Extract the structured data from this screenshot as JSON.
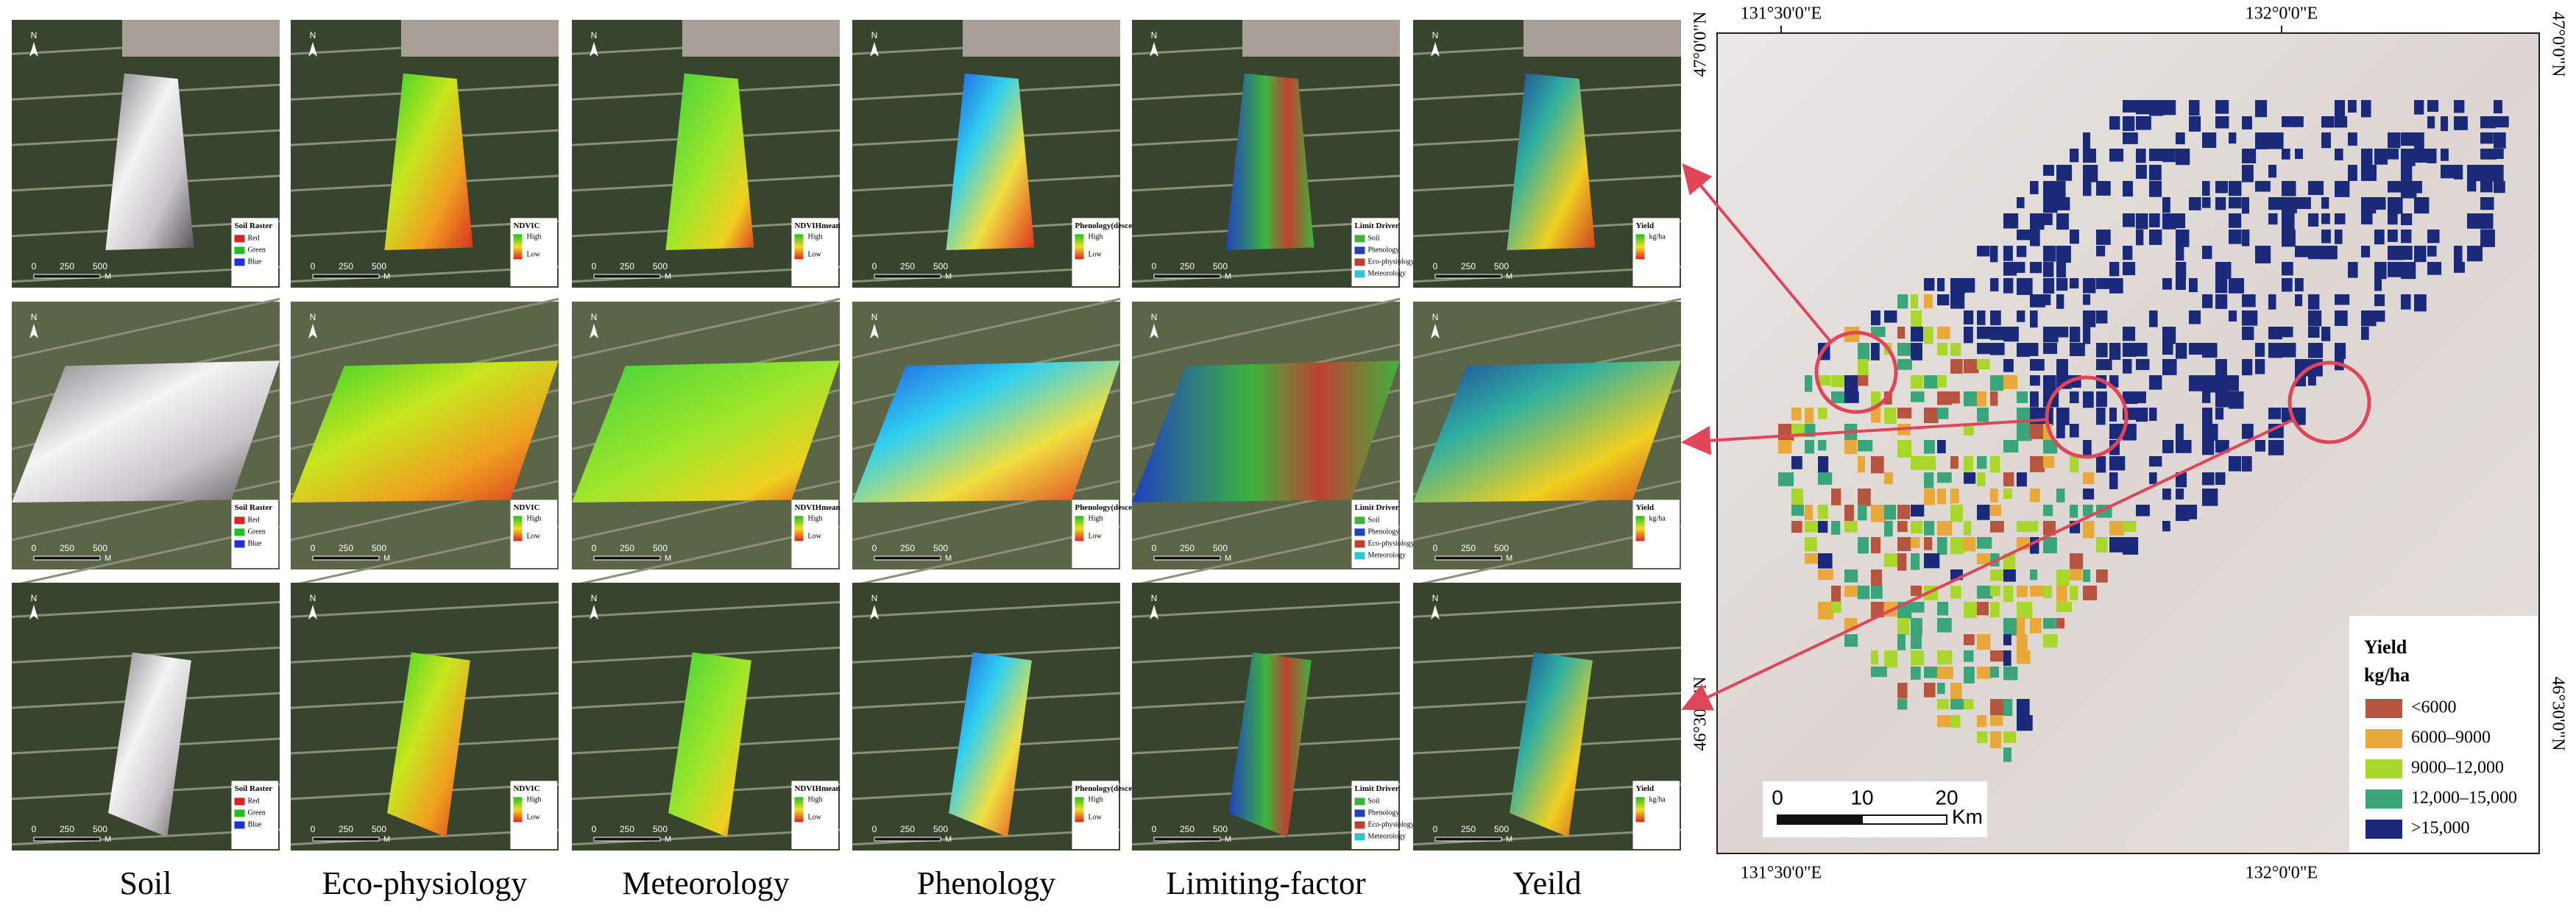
{
  "panels": {
    "columns": [
      {
        "label": "Soil",
        "legend_title": "Soil Raster",
        "legend_items": [
          "Red",
          "Green",
          "Blue"
        ],
        "swatches": [
          "#e02020",
          "#20c020",
          "#2030e0"
        ]
      },
      {
        "label": "Eco-physiology",
        "legend_title": "NDVIC",
        "legend_items": [
          "High",
          "Low"
        ]
      },
      {
        "label": "Meteorology",
        "legend_title": "NDVIHmean",
        "legend_items": [
          "High",
          "Low"
        ]
      },
      {
        "label": "Phenology",
        "legend_title": "Phenology(descend)",
        "legend_items": [
          "High",
          "Low"
        ]
      },
      {
        "label": "Limiting-factor",
        "legend_title": "Limit Driver",
        "legend_items": [
          "Soil",
          "Phenology",
          "Eco-physiology",
          "Meteorology"
        ],
        "swatches": [
          "#3cb43c",
          "#2040c0",
          "#c04030",
          "#30c8d0"
        ]
      },
      {
        "label": "Yeild",
        "legend_title": "Yield",
        "legend_items": [
          "kg/ha"
        ]
      }
    ],
    "north": "N",
    "scale_labels": [
      "0",
      "250",
      "500"
    ],
    "scale_unit": "M"
  },
  "map": {
    "lon_labels": [
      "131°30'0\"E",
      "132°0'0\"E"
    ],
    "lat_labels": [
      "47°0'0\"N",
      "46°30'0\"N"
    ],
    "legend": {
      "title": "Yield",
      "unit": "kg/ha",
      "items": [
        {
          "label": "<6000",
          "color": "#b5553f"
        },
        {
          "label": "6000–9000",
          "color": "#e8a93a"
        },
        {
          "label": "9000–12,000",
          "color": "#a8d62a"
        },
        {
          "label": "12,000–15,000",
          "color": "#3aa57a"
        },
        {
          "label": ">15,000",
          "color": "#1b2a78"
        }
      ]
    },
    "scale_labels": [
      "0",
      "10",
      "20"
    ],
    "scale_unit": "Km"
  }
}
